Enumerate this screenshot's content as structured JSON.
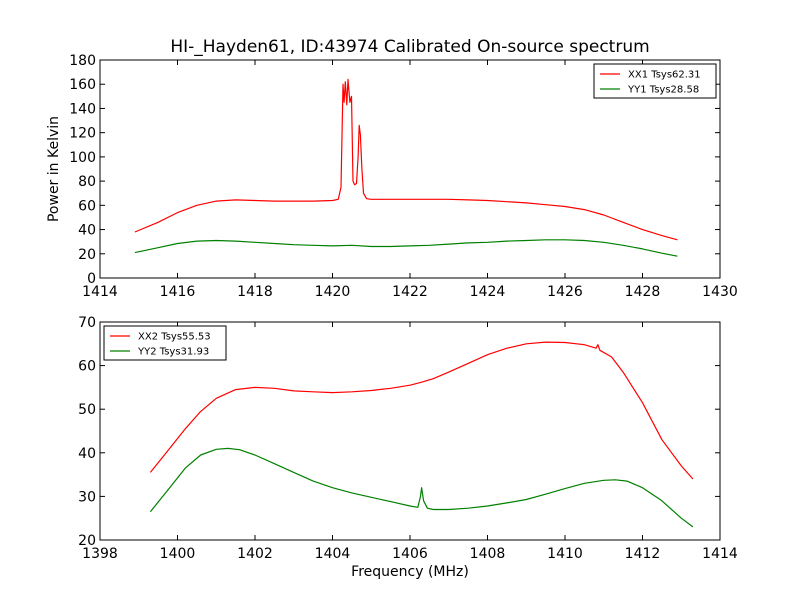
{
  "chart_data": [
    {
      "type": "line",
      "title": "HI-_Hayden61, ID:43974 Calibrated On-source spectrum",
      "xlabel": "",
      "ylabel": "Power in Kelvin",
      "xlim": [
        1414,
        1430
      ],
      "ylim": [
        0,
        180
      ],
      "xticks": [
        1414,
        1416,
        1418,
        1420,
        1422,
        1424,
        1426,
        1428,
        1430
      ],
      "yticks": [
        0,
        20,
        40,
        60,
        80,
        100,
        120,
        140,
        160,
        180
      ],
      "legend_position": "top-right",
      "grid": false,
      "series": [
        {
          "name": "XX1 Tsys62.31",
          "color": "#ff0000",
          "x": [
            1414.9,
            1415.5,
            1416.0,
            1416.5,
            1417.0,
            1417.5,
            1418.0,
            1418.5,
            1419.0,
            1419.5,
            1420.0,
            1420.15,
            1420.22,
            1420.27,
            1420.3,
            1420.33,
            1420.37,
            1420.4,
            1420.45,
            1420.49,
            1420.53,
            1420.57,
            1420.62,
            1420.66,
            1420.69,
            1420.72,
            1420.76,
            1420.8,
            1420.88,
            1421.0,
            1421.5,
            1422.0,
            1422.5,
            1423.0,
            1423.5,
            1424.0,
            1424.5,
            1425.0,
            1425.5,
            1426.0,
            1426.5,
            1427.0,
            1427.5,
            1428.0,
            1428.5,
            1428.9
          ],
          "values": [
            38,
            46,
            54,
            60,
            63.5,
            64.5,
            64,
            63.5,
            63.5,
            63.5,
            64,
            65,
            75,
            160,
            145,
            162,
            143,
            164,
            145,
            150,
            80,
            77,
            78,
            100,
            126,
            118,
            90,
            70,
            65.5,
            65,
            65,
            65,
            65,
            65,
            64.5,
            64,
            63,
            62,
            60.5,
            59,
            56.5,
            52,
            46,
            40,
            35,
            31.5
          ]
        },
        {
          "name": "YY1 Tsys28.58",
          "color": "#008000",
          "x": [
            1414.9,
            1415.5,
            1416.0,
            1416.5,
            1417.0,
            1417.5,
            1418.0,
            1418.5,
            1419.0,
            1419.5,
            1420.0,
            1420.5,
            1421.0,
            1421.5,
            1422.0,
            1422.5,
            1423.0,
            1423.5,
            1424.0,
            1424.5,
            1425.0,
            1425.5,
            1426.0,
            1426.5,
            1427.0,
            1427.5,
            1428.0,
            1428.5,
            1428.9
          ],
          "values": [
            21,
            25,
            28.5,
            30.5,
            31,
            30.5,
            29.5,
            28.5,
            27.5,
            27,
            26.5,
            27,
            26,
            26,
            26.5,
            27,
            28,
            29,
            29.5,
            30.5,
            31,
            31.5,
            31.5,
            31,
            29.5,
            27,
            24,
            20.5,
            18
          ]
        }
      ]
    },
    {
      "type": "line",
      "title": "",
      "xlabel": "Frequency (MHz)",
      "ylabel": "",
      "xlim": [
        1398,
        1414
      ],
      "ylim": [
        20,
        70
      ],
      "xticks": [
        1398,
        1400,
        1402,
        1404,
        1406,
        1408,
        1410,
        1412,
        1414
      ],
      "yticks": [
        20,
        30,
        40,
        50,
        60,
        70
      ],
      "legend_position": "top-left",
      "grid": false,
      "series": [
        {
          "name": "XX2 Tsys55.53",
          "color": "#ff0000",
          "x": [
            1399.3,
            1399.8,
            1400.2,
            1400.6,
            1401.0,
            1401.5,
            1402.0,
            1402.5,
            1403.0,
            1403.5,
            1404.0,
            1404.5,
            1405.0,
            1405.5,
            1406.0,
            1406.3,
            1406.6,
            1407.0,
            1407.5,
            1408.0,
            1408.5,
            1409.0,
            1409.5,
            1410.0,
            1410.5,
            1410.8,
            1410.85,
            1410.9,
            1411.2,
            1411.5,
            1412.0,
            1412.5,
            1413.0,
            1413.3
          ],
          "values": [
            35.5,
            41,
            45.5,
            49.5,
            52.5,
            54.5,
            55,
            54.8,
            54.2,
            54,
            53.8,
            54,
            54.3,
            54.8,
            55.5,
            56.2,
            57,
            58.5,
            60.5,
            62.5,
            64,
            65,
            65.4,
            65.3,
            64.8,
            64,
            64.8,
            63.5,
            62,
            58.5,
            51.5,
            43,
            37,
            34
          ]
        },
        {
          "name": "YY2 Tsys31.93",
          "color": "#008000",
          "x": [
            1399.3,
            1399.8,
            1400.2,
            1400.6,
            1401.0,
            1401.3,
            1401.6,
            1402.0,
            1402.5,
            1403.0,
            1403.5,
            1404.0,
            1404.5,
            1405.0,
            1405.5,
            1406.0,
            1406.2,
            1406.27,
            1406.3,
            1406.35,
            1406.45,
            1406.6,
            1407.0,
            1407.5,
            1408.0,
            1408.5,
            1409.0,
            1409.5,
            1410.0,
            1410.5,
            1411.0,
            1411.3,
            1411.6,
            1412.0,
            1412.5,
            1413.0,
            1413.3
          ],
          "values": [
            26.5,
            32,
            36.5,
            39.5,
            40.8,
            41,
            40.7,
            39.5,
            37.5,
            35.5,
            33.5,
            32,
            30.8,
            29.8,
            28.8,
            27.8,
            27.5,
            30,
            32,
            29,
            27.3,
            27,
            27,
            27.3,
            27.8,
            28.5,
            29.3,
            30.5,
            31.8,
            33,
            33.7,
            33.8,
            33.5,
            32,
            29,
            25,
            23
          ]
        }
      ]
    }
  ]
}
